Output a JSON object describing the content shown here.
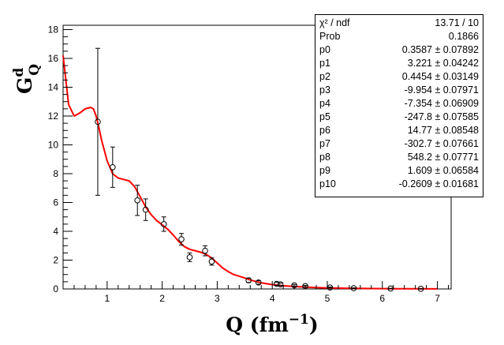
{
  "chart_data": {
    "type": "scatter",
    "xlabel": "Q (fm",
    "xlabel_exp": "−1",
    "xlabel_close": ")",
    "ylabel_main": "G",
    "ylabel_sup": "d",
    "ylabel_sub": "Q",
    "xlim": [
      0.2,
      7.25
    ],
    "ylim": [
      0,
      18.3
    ],
    "x_ticks": [
      1,
      2,
      3,
      4,
      5,
      6,
      7
    ],
    "y_ticks": [
      0,
      2,
      4,
      6,
      8,
      10,
      12,
      14,
      16,
      18
    ],
    "grid": false,
    "series": [
      {
        "kind": "points-with-error-bars",
        "marker": "open-circle",
        "color": "#000000",
        "points": [
          {
            "x": 0.83,
            "y": 11.6,
            "err": 5.1
          },
          {
            "x": 1.1,
            "y": 8.45,
            "err": 1.4
          },
          {
            "x": 1.55,
            "y": 6.15,
            "err": 1.05
          },
          {
            "x": 1.7,
            "y": 5.5,
            "err": 0.75
          },
          {
            "x": 2.03,
            "y": 4.5,
            "err": 0.5
          },
          {
            "x": 2.35,
            "y": 3.45,
            "err": 0.4
          },
          {
            "x": 2.5,
            "y": 2.2,
            "err": 0.3
          },
          {
            "x": 2.78,
            "y": 2.65,
            "err": 0.35
          },
          {
            "x": 2.9,
            "y": 1.9,
            "err": 0.25
          },
          {
            "x": 3.57,
            "y": 0.6,
            "err": 0.15
          },
          {
            "x": 3.75,
            "y": 0.45,
            "err": 0.12
          },
          {
            "x": 4.08,
            "y": 0.35,
            "err": 0.1
          },
          {
            "x": 4.15,
            "y": 0.32,
            "err": 0.08
          },
          {
            "x": 4.4,
            "y": 0.25,
            "err": 0.06
          },
          {
            "x": 4.6,
            "y": 0.2,
            "err": 0.05
          },
          {
            "x": 5.05,
            "y": 0.1,
            "err": 0.03
          },
          {
            "x": 5.48,
            "y": 0.05,
            "err": 0.02
          },
          {
            "x": 6.15,
            "y": 0.03,
            "err": 0.01
          },
          {
            "x": 6.7,
            "y": 0.01,
            "err": 0.01
          }
        ]
      },
      {
        "kind": "fit-curve",
        "color": "#ff0000",
        "x": [
          0.2,
          0.3,
          0.4,
          0.5,
          0.6,
          0.7,
          0.75,
          0.8,
          0.85,
          0.9,
          1.0,
          1.1,
          1.2,
          1.3,
          1.4,
          1.5,
          1.6,
          1.7,
          1.8,
          1.9,
          2.0,
          2.1,
          2.2,
          2.3,
          2.4,
          2.5,
          2.6,
          2.7,
          2.8,
          2.9,
          3.0,
          3.1,
          3.2,
          3.3,
          3.4,
          3.5,
          3.6,
          3.8,
          4.0,
          4.2,
          4.5,
          4.8,
          5.0,
          5.5,
          6.0,
          6.5,
          7.0
        ],
        "y": [
          16.2,
          12.8,
          12.0,
          12.2,
          12.5,
          12.6,
          12.5,
          12.0,
          11.2,
          10.3,
          8.9,
          8.0,
          7.7,
          7.6,
          7.5,
          7.1,
          6.4,
          5.7,
          5.15,
          4.75,
          4.45,
          4.15,
          3.75,
          3.3,
          2.95,
          2.75,
          2.65,
          2.55,
          2.4,
          2.15,
          1.8,
          1.45,
          1.2,
          1.0,
          0.88,
          0.76,
          0.62,
          0.42,
          0.3,
          0.22,
          0.15,
          0.1,
          0.07,
          0.04,
          0.02,
          0.01,
          0.005
        ]
      }
    ],
    "stats_box": {
      "position": "top-right",
      "rows": [
        {
          "name": "χ² / ndf",
          "value": "13.71 / 10"
        },
        {
          "name": "Prob",
          "value": "0.1866"
        },
        {
          "name": "p0",
          "value": "0.3587 ± 0.07892"
        },
        {
          "name": "p1",
          "value": "3.221 ± 0.04242"
        },
        {
          "name": "p2",
          "value": "0.4454 ± 0.03149"
        },
        {
          "name": "p3",
          "value": "-9.954 ± 0.07971"
        },
        {
          "name": "p4",
          "value": "-7.354 ± 0.06909"
        },
        {
          "name": "p5",
          "value": "-247.8 ± 0.07585"
        },
        {
          "name": "p6",
          "value": "14.77 ± 0.08548"
        },
        {
          "name": "p7",
          "value": "-302.7 ± 0.07661"
        },
        {
          "name": "p8",
          "value": "548.2 ± 0.07771"
        },
        {
          "name": "p9",
          "value": "1.609 ± 0.06584"
        },
        {
          "name": "p10",
          "value": "-0.2609 ± 0.01681"
        }
      ]
    }
  }
}
